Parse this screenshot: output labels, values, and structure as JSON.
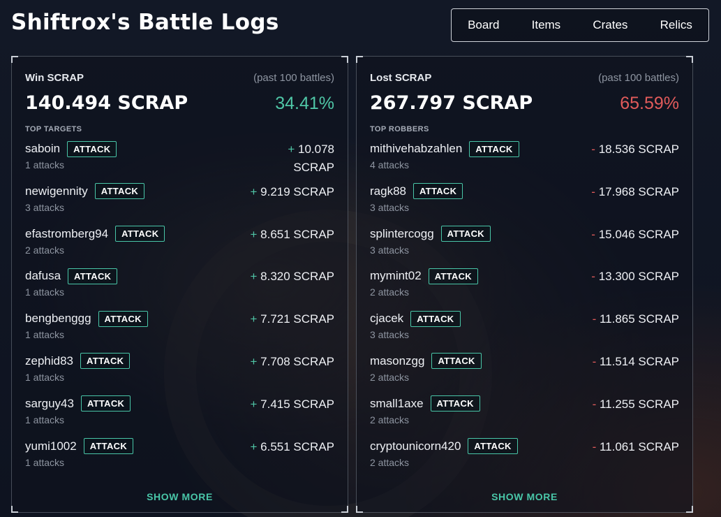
{
  "page": {
    "title": "Shiftrox's Battle Logs"
  },
  "nav": [
    "Board",
    "Items",
    "Crates",
    "Relics"
  ],
  "win": {
    "label": "Win SCRAP",
    "sub": "(past 100 battles)",
    "total": "140.494 SCRAP",
    "pct": "34.41%",
    "section": "TOP TARGETS",
    "attack_label": "ATTACK",
    "show_more": "SHOW MORE",
    "rows": [
      {
        "name": "saboin",
        "count": "1 attacks",
        "sign": "+",
        "amount": "10.078 SCRAP"
      },
      {
        "name": "newigennity",
        "count": "3 attacks",
        "sign": "+",
        "amount": "9.219 SCRAP"
      },
      {
        "name": "efastromberg94",
        "count": "2 attacks",
        "sign": "+",
        "amount": "8.651 SCRAP"
      },
      {
        "name": "dafusa",
        "count": "1 attacks",
        "sign": "+",
        "amount": "8.320 SCRAP"
      },
      {
        "name": "bengbenggg",
        "count": "1 attacks",
        "sign": "+",
        "amount": "7.721 SCRAP"
      },
      {
        "name": "zephid83",
        "count": "1 attacks",
        "sign": "+",
        "amount": "7.708 SCRAP"
      },
      {
        "name": "sarguy43",
        "count": "1 attacks",
        "sign": "+",
        "amount": "7.415 SCRAP"
      },
      {
        "name": "yumi1002",
        "count": "1 attacks",
        "sign": "+",
        "amount": "6.551 SCRAP"
      }
    ]
  },
  "lost": {
    "label": "Lost SCRAP",
    "sub": "(past 100 battles)",
    "total": "267.797 SCRAP",
    "pct": "65.59%",
    "section": "TOP ROBBERS",
    "attack_label": "ATTACK",
    "show_more": "SHOW MORE",
    "rows": [
      {
        "name": "mithivehabzahlen",
        "count": "4 attacks",
        "sign": "-",
        "amount": "18.536 SCRAP"
      },
      {
        "name": "ragk88",
        "count": "3 attacks",
        "sign": "-",
        "amount": "17.968 SCRAP"
      },
      {
        "name": "splintercogg",
        "count": "3 attacks",
        "sign": "-",
        "amount": "15.046 SCRAP"
      },
      {
        "name": "mymint02",
        "count": "2 attacks",
        "sign": "-",
        "amount": "13.300 SCRAP"
      },
      {
        "name": "cjacek",
        "count": "3 attacks",
        "sign": "-",
        "amount": "11.865 SCRAP"
      },
      {
        "name": "masonzgg",
        "count": "2 attacks",
        "sign": "-",
        "amount": "11.514 SCRAP"
      },
      {
        "name": "small1axe",
        "count": "2 attacks",
        "sign": "-",
        "amount": "11.255 SCRAP"
      },
      {
        "name": "cryptounicorn420",
        "count": "2 attacks",
        "sign": "-",
        "amount": "11.061 SCRAP"
      }
    ]
  },
  "colors": {
    "accent": "#49c6a8",
    "win": "#4fc6a6",
    "loss": "#e25b5b"
  }
}
